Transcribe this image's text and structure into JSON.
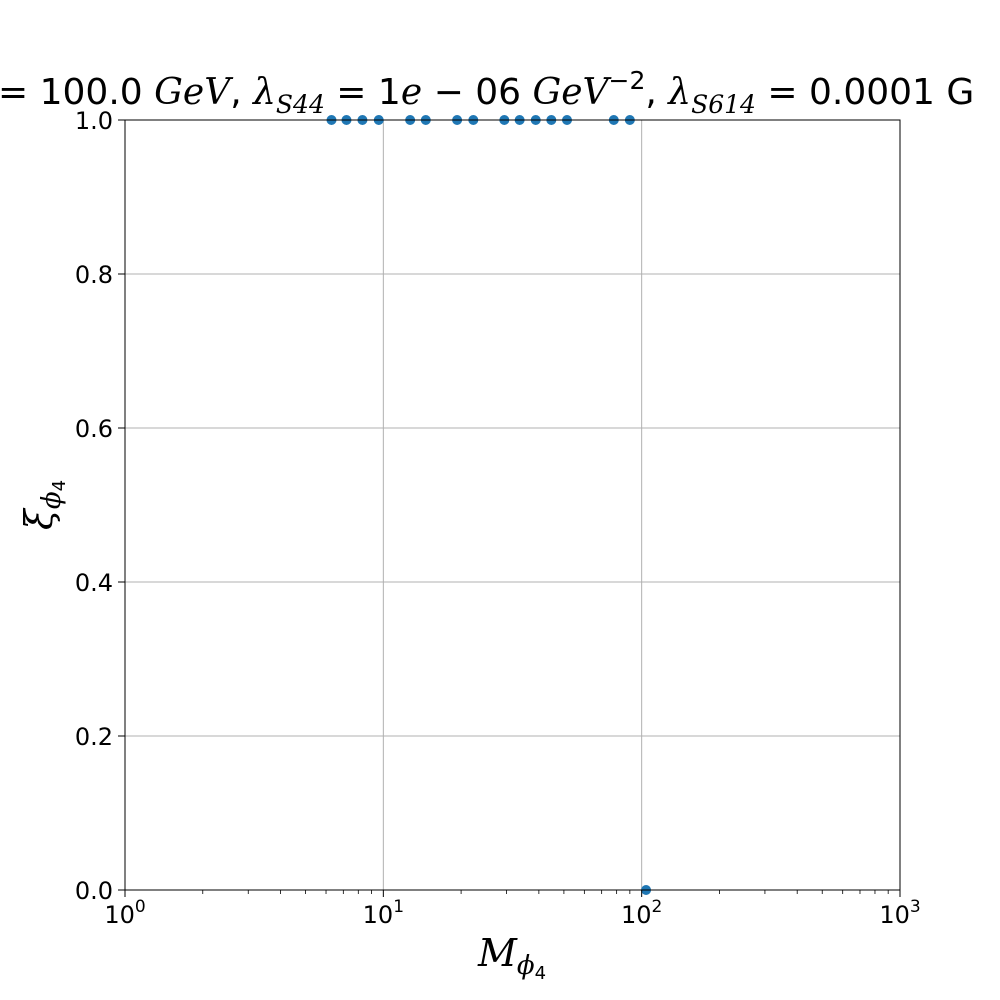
{
  "chart_data": {
    "type": "scatter",
    "title": "= 100.0 GeV, λ_S44 = 1e − 06 GeV^−2, λ_S614 = 0.0001 G",
    "title_parts": {
      "p1": "= 100.0 ",
      "p2": "GeV",
      "p3": ", ",
      "p4": "λ",
      "p5": "S44",
      "p6": " = 1",
      "p7": "e",
      "p8": " − 06 ",
      "p9": "GeV",
      "p10": "−2",
      "p11": ", ",
      "p12": "λ",
      "p13": "S614",
      "p14": " = 0.0001 G"
    },
    "xlabel": "M_ϕ4",
    "xlabel_parts": {
      "main": "M",
      "sub": "ϕ",
      "subsub": "4"
    },
    "ylabel": "ξ_ϕ4",
    "ylabel_parts": {
      "main": "ξ",
      "sub": "ϕ",
      "subsub": "4"
    },
    "xscale": "log",
    "xlim": [
      1,
      1000
    ],
    "ylim": [
      0,
      1
    ],
    "xticks": [
      {
        "value": 1,
        "base": "10",
        "exp": "0"
      },
      {
        "value": 10,
        "base": "10",
        "exp": "1"
      },
      {
        "value": 100,
        "base": "10",
        "exp": "2"
      },
      {
        "value": 1000,
        "base": "10",
        "exp": "3"
      }
    ],
    "yticks": [
      {
        "value": 0.0,
        "label": "0.0"
      },
      {
        "value": 0.2,
        "label": "0.2"
      },
      {
        "value": 0.4,
        "label": "0.4"
      },
      {
        "value": 0.6,
        "label": "0.6"
      },
      {
        "value": 0.8,
        "label": "0.8"
      },
      {
        "value": 1.0,
        "label": "1.0"
      }
    ],
    "grid": true,
    "marker_color": "#1f77b4",
    "x": [
      6.3,
      7.2,
      8.3,
      9.6,
      12.7,
      14.6,
      19.3,
      22.3,
      29.4,
      33.7,
      38.9,
      44.7,
      51.4,
      78.0,
      90.0,
      104.0
    ],
    "y": [
      1.0,
      1.0,
      1.0,
      1.0,
      1.0,
      1.0,
      1.0,
      1.0,
      1.0,
      1.0,
      1.0,
      1.0,
      1.0,
      1.0,
      1.0,
      0.0
    ]
  }
}
